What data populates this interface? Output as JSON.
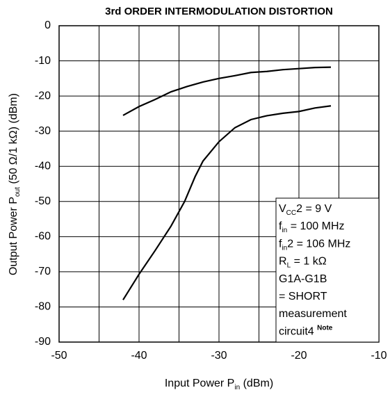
{
  "chart_data": {
    "type": "line",
    "title": "3rd ORDER INTERMODULATION DISTORTION",
    "x_label": [
      {
        "t": "Input Power  P"
      },
      {
        "t": "in",
        "sub": true
      },
      {
        "t": " (dBm)"
      }
    ],
    "y_label": [
      {
        "t": "Output Power  P"
      },
      {
        "t": "out",
        "sub": true
      },
      {
        "t": " (50 Ω/1 kΩ) (dBm)"
      }
    ],
    "xlim": [
      -50,
      -10
    ],
    "xticks": [
      -50,
      -40,
      -30,
      -20,
      -10
    ],
    "xminor": [
      -45,
      -35,
      -25,
      -15
    ],
    "ylim": [
      -90,
      0
    ],
    "yticks": [
      -90,
      -80,
      -70,
      -60,
      -50,
      -40,
      -30,
      -20,
      -10,
      0
    ],
    "grid": true,
    "series": [
      {
        "color": "#000000",
        "x": [
          -42,
          -40,
          -38,
          -36,
          -34,
          -32,
          -30,
          -28,
          -26,
          -24,
          -22,
          -20,
          -18,
          -16
        ],
        "values": [
          -25.5,
          -23,
          -21,
          -18.8,
          -17.3,
          -16,
          -15,
          -14.2,
          -13.3,
          -13,
          -12.5,
          -12.2,
          -11.9,
          -11.8
        ]
      },
      {
        "color": "#000000",
        "x": [
          -42,
          -40,
          -38,
          -36,
          -34.3,
          -33,
          -32,
          -30,
          -28,
          -26,
          -24,
          -22,
          -20,
          -18,
          -16
        ],
        "values": [
          -78,
          -70.7,
          -64,
          -57,
          -50,
          -43,
          -38.5,
          -33,
          -29,
          -26.7,
          -25.6,
          -24.9,
          -24.4,
          -23.4,
          -22.8
        ]
      }
    ],
    "annotation": [
      [
        {
          "t": "V"
        },
        {
          "t": "CC",
          "sub": true
        },
        {
          "t": "2 = 9 V"
        }
      ],
      [
        {
          "t": "f"
        },
        {
          "t": "in",
          "sub": true
        },
        {
          "t": " = 100 MHz"
        }
      ],
      [
        {
          "t": "f"
        },
        {
          "t": "in",
          "sub": true
        },
        {
          "t": "2 = 106 MHz"
        }
      ],
      [
        {
          "t": "R"
        },
        {
          "t": "L",
          "sub": true
        },
        {
          "t": " = 1 kΩ"
        }
      ],
      [
        {
          "t": "G1A-G1B"
        }
      ],
      [
        {
          "t": "  = SHORT"
        }
      ],
      [
        {
          "t": "measurement"
        }
      ],
      [
        {
          "t": "circuit4 "
        },
        {
          "t": "Note",
          "sup": true
        }
      ]
    ]
  }
}
